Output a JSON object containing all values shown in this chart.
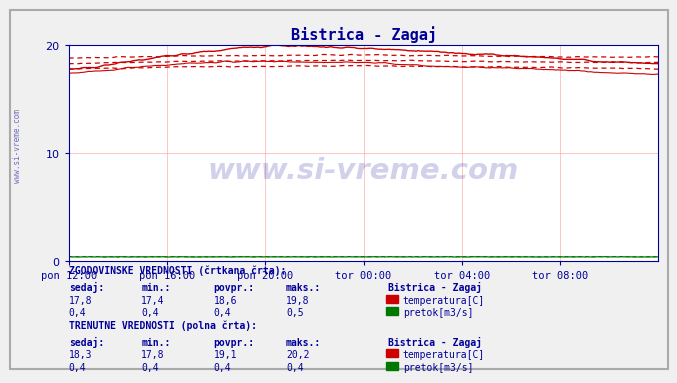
{
  "title": "Bistrica - Zagaj",
  "title_color": "#000099",
  "bg_color": "#f0f0f0",
  "plot_bg_color": "#ffffff",
  "grid_color": "#ffaaaa",
  "axis_color": "#000099",
  "tick_color": "#000099",
  "watermark_text": "www.si-vreme.com",
  "watermark_color": "#000099",
  "watermark_alpha": 0.18,
  "x_tick_labels": [
    "pon 12:00",
    "pon 16:00",
    "pon 20:00",
    "tor 00:00",
    "tor 04:00",
    "tor 08:00"
  ],
  "x_tick_positions": [
    0.0,
    0.1667,
    0.3333,
    0.5,
    0.6667,
    0.8333
  ],
  "ylim": [
    0,
    20
  ],
  "yticks": [
    0,
    10,
    20
  ],
  "n_points": 288,
  "temp_color": "#cc0000",
  "flow_color": "#007700",
  "sidebar_text": "www.si-vreme.com",
  "sidebar_color": "#000099",
  "bottom_text_color": "#000099",
  "legend_title1": "ZGODOVINSKE VREDNOSTI (črtkana črta):",
  "legend_title2": "TRENUTNE VREDNOSTI (polna črta):",
  "legend_station": "Bistrica - Zagaj",
  "legend_headers": [
    "sedaj:",
    "min.:",
    "povpr.:",
    "maks.:"
  ],
  "hist_temp_values": [
    "17,8",
    "17,4",
    "18,6",
    "19,8"
  ],
  "hist_flow_values": [
    "0,4",
    "0,4",
    "0,4",
    "0,5"
  ],
  "curr_temp_values": [
    "18,3",
    "17,8",
    "19,1",
    "20,2"
  ],
  "curr_flow_values": [
    "0,4",
    "0,4",
    "0,4",
    "0,4"
  ],
  "label_temperatura": "temperatura[C]",
  "label_pretok": "pretok[m3/s]"
}
